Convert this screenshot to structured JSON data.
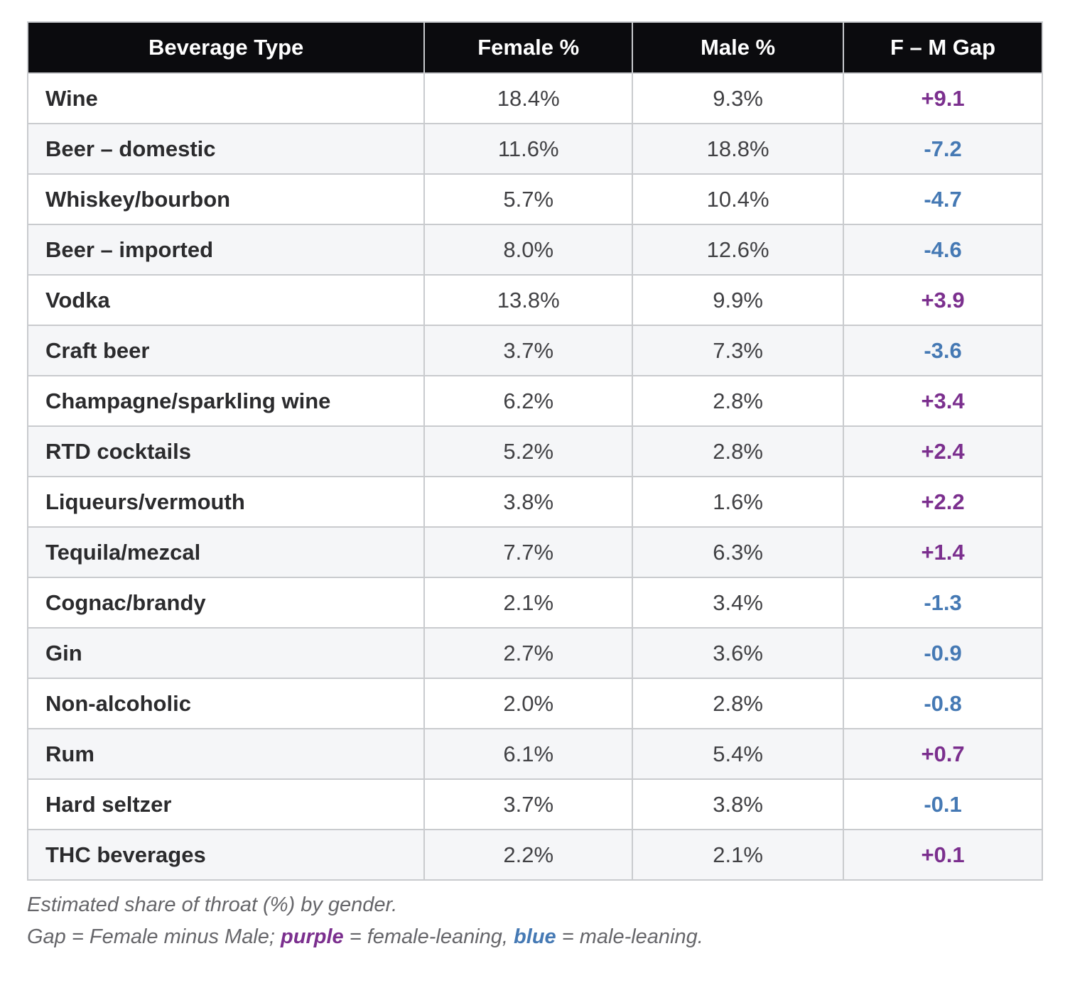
{
  "chart_data": {
    "type": "table",
    "columns": [
      "Beverage Type",
      "Female %",
      "Male %",
      "F – M Gap"
    ],
    "rows": [
      {
        "beverage": "Wine",
        "female": "18.4%",
        "male": "9.3%",
        "gap": "+9.1",
        "lean": "female"
      },
      {
        "beverage": "Beer – domestic",
        "female": "11.6%",
        "male": "18.8%",
        "gap": "-7.2",
        "lean": "male"
      },
      {
        "beverage": "Whiskey/bourbon",
        "female": "5.7%",
        "male": "10.4%",
        "gap": "-4.7",
        "lean": "male"
      },
      {
        "beverage": "Beer – imported",
        "female": "8.0%",
        "male": "12.6%",
        "gap": "-4.6",
        "lean": "male"
      },
      {
        "beverage": "Vodka",
        "female": "13.8%",
        "male": "9.9%",
        "gap": "+3.9",
        "lean": "female"
      },
      {
        "beverage": "Craft beer",
        "female": "3.7%",
        "male": "7.3%",
        "gap": "-3.6",
        "lean": "male"
      },
      {
        "beverage": "Champagne/sparkling wine",
        "female": "6.2%",
        "male": "2.8%",
        "gap": "+3.4",
        "lean": "female"
      },
      {
        "beverage": "RTD cocktails",
        "female": "5.2%",
        "male": "2.8%",
        "gap": "+2.4",
        "lean": "female"
      },
      {
        "beverage": "Liqueurs/vermouth",
        "female": "3.8%",
        "male": "1.6%",
        "gap": "+2.2",
        "lean": "female"
      },
      {
        "beverage": "Tequila/mezcal",
        "female": "7.7%",
        "male": "6.3%",
        "gap": "+1.4",
        "lean": "female"
      },
      {
        "beverage": "Cognac/brandy",
        "female": "2.1%",
        "male": "3.4%",
        "gap": "-1.3",
        "lean": "male"
      },
      {
        "beverage": "Gin",
        "female": "2.7%",
        "male": "3.6%",
        "gap": "-0.9",
        "lean": "male"
      },
      {
        "beverage": "Non-alcoholic",
        "female": "2.0%",
        "male": "2.8%",
        "gap": "-0.8",
        "lean": "male"
      },
      {
        "beverage": "Rum",
        "female": "6.1%",
        "male": "5.4%",
        "gap": "+0.7",
        "lean": "female"
      },
      {
        "beverage": "Hard seltzer",
        "female": "3.7%",
        "male": "3.8%",
        "gap": "-0.1",
        "lean": "male"
      },
      {
        "beverage": "THC beverages",
        "female": "2.2%",
        "male": "2.1%",
        "gap": "+0.1",
        "lean": "female"
      }
    ],
    "colors": {
      "female_leaning": "#7b2f8e",
      "male_leaning": "#4579b4"
    }
  },
  "header": {
    "col_beverage": "Beverage Type",
    "col_female": "Female %",
    "col_male": "Male %",
    "col_gap": "F – M Gap"
  },
  "footnote": {
    "line1": "Estimated share of throat (%) by gender.",
    "line2_prefix": "Gap = Female minus Male; ",
    "line2_purple_word": "purple",
    "line2_mid": " = female-leaning, ",
    "line2_blue_word": "blue",
    "line2_suffix": " = male-leaning."
  }
}
